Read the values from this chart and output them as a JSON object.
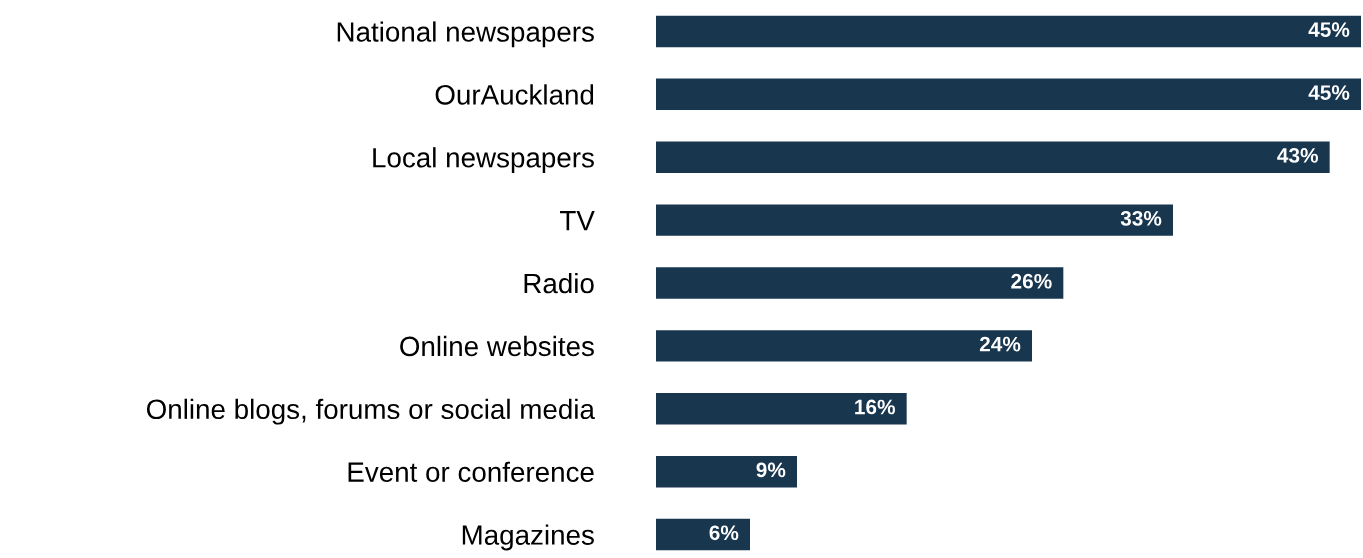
{
  "chart_data": {
    "type": "bar",
    "orientation": "horizontal",
    "categories": [
      "National newspapers",
      "OurAuckland",
      "Local newspapers",
      "TV",
      "Radio",
      "Online websites",
      "Online blogs, forums or social media",
      "Event or conference",
      "Magazines"
    ],
    "values": [
      45,
      45,
      43,
      33,
      26,
      24,
      16,
      9,
      6
    ],
    "value_labels": [
      "45%",
      "45%",
      "43%",
      "33%",
      "26%",
      "24%",
      "16%",
      "9%",
      "6%"
    ],
    "color": "#19364f",
    "xlim": [
      0,
      45
    ],
    "tick_labels": "y",
    "grid": false,
    "legend": false
  }
}
